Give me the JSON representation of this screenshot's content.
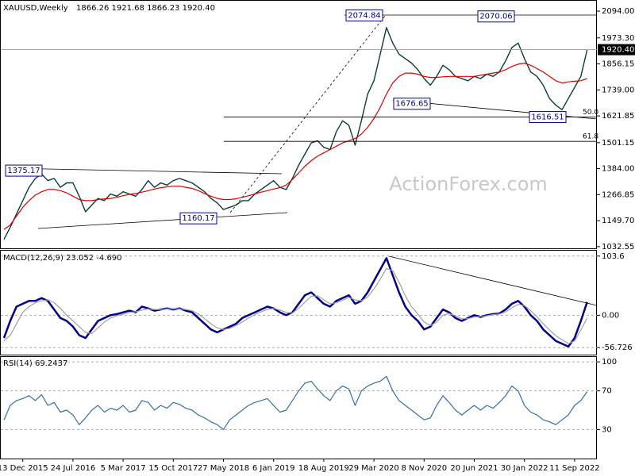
{
  "chart_data": [
    {
      "type": "line",
      "title": "XAUUSD,Weekly",
      "subtitle": "1866.26 1921.68 1866.23 1920.40",
      "categories": [
        null,
        null,
        null,
        "13 Dec 2015",
        null,
        null,
        null,
        null,
        null,
        null,
        null,
        "24 Jul 2016",
        null,
        null,
        null,
        null,
        null,
        null,
        null,
        "5 Mar 2017",
        null,
        null,
        null,
        null,
        null,
        null,
        null,
        "15 Oct 2017",
        null,
        null,
        null,
        null,
        null,
        null,
        null,
        "27 May 2018",
        null,
        null,
        null,
        null,
        null,
        null,
        null,
        "6 Jan 2019",
        null,
        null,
        null,
        null,
        null,
        null,
        null,
        "18 Aug 2019",
        null,
        null,
        null,
        null,
        null,
        null,
        null,
        "29 Mar 2020",
        null,
        null,
        null,
        null,
        null,
        null,
        null,
        "8 Nov 2020",
        null,
        null,
        null,
        null,
        null,
        null,
        null,
        "20 Jun 2021",
        null,
        null,
        null,
        null,
        null,
        null,
        null,
        "30 Jan 2022",
        null,
        null,
        null,
        null,
        null,
        null,
        null,
        "11 Sep 2022",
        null,
        null
      ],
      "series": [
        {
          "color": "#0b3b3b",
          "values": [
            1065,
            1120,
            1180,
            1240,
            1300,
            1340,
            1360,
            1330,
            1340,
            1300,
            1320,
            1320,
            1260,
            1190,
            1220,
            1250,
            1240,
            1270,
            1260,
            1280,
            1270,
            1260,
            1290,
            1330,
            1300,
            1320,
            1310,
            1330,
            1340,
            1330,
            1320,
            1300,
            1280,
            1250,
            1230,
            1200,
            1210,
            1220,
            1240,
            1240,
            1270,
            1290,
            1310,
            1330,
            1300,
            1290,
            1340,
            1400,
            1450,
            1500,
            1510,
            1480,
            1470,
            1550,
            1600,
            1580,
            1490,
            1600,
            1720,
            1780,
            1900,
            2020,
            1950,
            1900,
            1880,
            1860,
            1830,
            1790,
            1760,
            1800,
            1850,
            1830,
            1800,
            1790,
            1780,
            1800,
            1790,
            1810,
            1800,
            1820,
            1870,
            1930,
            1950,
            1880,
            1820,
            1800,
            1760,
            1700,
            1670,
            1650,
            1700,
            1750,
            1800,
            1920.4
          ]
        },
        {
          "color": "#e00000",
          "values": [
            1110,
            1130,
            1170,
            1210,
            1240,
            1265,
            1280,
            1290,
            1290,
            1285,
            1275,
            1260,
            1245,
            1240,
            1240,
            1245,
            1248,
            1250,
            1255,
            1262,
            1268,
            1272,
            1278,
            1285,
            1292,
            1298,
            1302,
            1305,
            1305,
            1300,
            1295,
            1285,
            1272,
            1260,
            1250,
            1245,
            1245,
            1248,
            1255,
            1262,
            1270,
            1278,
            1285,
            1292,
            1298,
            1310,
            1335,
            1365,
            1395,
            1420,
            1440,
            1455,
            1470,
            1485,
            1500,
            1510,
            1520,
            1540,
            1570,
            1610,
            1660,
            1720,
            1770,
            1800,
            1815,
            1815,
            1810,
            1800,
            1795,
            1795,
            1798,
            1800,
            1800,
            1800,
            1800,
            1800,
            1805,
            1810,
            1815,
            1820,
            1830,
            1845,
            1855,
            1860,
            1850,
            1835,
            1820,
            1800,
            1780,
            1770,
            1775,
            1778,
            1780,
            1790
          ]
        }
      ],
      "ylim": [
        1025,
        2137
      ],
      "yticks": [
        {
          "value": 2094,
          "label": "2094.00"
        },
        {
          "value": 1973.3,
          "label": "1973.30"
        },
        {
          "value": 1856.15,
          "label": "1856.15"
        },
        {
          "value": 1739,
          "label": "1739.00"
        },
        {
          "value": 1621.85,
          "label": "1621.85"
        },
        {
          "value": 1501.15,
          "label": "1501.15"
        },
        {
          "value": 1384,
          "label": "1384.00"
        },
        {
          "value": 1266.85,
          "label": "1266.85"
        },
        {
          "value": 1149.7,
          "label": "1149.70"
        },
        {
          "value": 1032.55,
          "label": "1032.55"
        }
      ],
      "last_price": {
        "value": 1920.4,
        "label": "1920.40"
      },
      "annotations": [
        2074.84,
        2070.06,
        1375.17,
        1160.17,
        1676.65,
        1616.51
      ],
      "fib_levels": [
        {
          "value": 1617,
          "label": "50.0"
        },
        {
          "value": 1507,
          "label": "61.8"
        }
      ],
      "watermark": "ActionForex.com"
    },
    {
      "type": "line",
      "title": "MACD(12,26,9) 23.052 -4.690",
      "series": [
        {
          "color": "#00008b",
          "values": [
            -40,
            -10,
            15,
            20,
            25,
            25,
            30,
            25,
            10,
            -5,
            -10,
            -20,
            -35,
            -40,
            -25,
            -10,
            -5,
            0,
            2,
            5,
            8,
            5,
            15,
            12,
            8,
            10,
            12,
            10,
            12,
            8,
            5,
            -5,
            -15,
            -25,
            -30,
            -25,
            -20,
            -15,
            -5,
            0,
            5,
            10,
            15,
            12,
            5,
            0,
            5,
            20,
            35,
            40,
            30,
            20,
            15,
            25,
            30,
            35,
            20,
            25,
            40,
            60,
            80,
            100,
            70,
            40,
            15,
            0,
            -10,
            -25,
            -20,
            -5,
            10,
            5,
            -5,
            -10,
            -5,
            0,
            -3,
            0,
            2,
            3,
            10,
            20,
            25,
            15,
            0,
            -10,
            -25,
            -35,
            -45,
            -50,
            -55,
            -40,
            -10,
            23.052
          ]
        },
        {
          "color": "#a0a0a0",
          "values": [
            -45,
            -35,
            -15,
            5,
            15,
            22,
            25,
            27,
            22,
            12,
            0,
            -10,
            -20,
            -30,
            -32,
            -22,
            -12,
            -5,
            -1,
            2,
            5,
            6,
            9,
            11,
            10,
            10,
            11,
            11,
            11,
            10,
            8,
            2,
            -6,
            -15,
            -22,
            -25,
            -23,
            -18,
            -12,
            -5,
            1,
            6,
            10,
            12,
            9,
            5,
            4,
            12,
            23,
            33,
            34,
            27,
            20,
            22,
            26,
            31,
            27,
            25,
            32,
            46,
            63,
            82,
            78,
            58,
            34,
            15,
            2,
            -12,
            -18,
            -12,
            0,
            3,
            -1,
            -6,
            -6,
            -3,
            -2,
            -1,
            1,
            2,
            6,
            13,
            19,
            17,
            8,
            -3,
            -15,
            -26,
            -36,
            -43,
            -50,
            -45,
            -26,
            -4.69
          ]
        }
      ],
      "ylim": [
        -69,
        113
      ],
      "yticks": [
        103.6,
        {
          "value": 0,
          "label": "0.00"
        },
        -56.726
      ]
    },
    {
      "type": "line",
      "title": "RSI(14) 69.2437",
      "series": [
        {
          "color": "#3a6ea5",
          "values": [
            40,
            55,
            60,
            62,
            65,
            60,
            66,
            55,
            58,
            48,
            50,
            45,
            35,
            42,
            50,
            55,
            48,
            52,
            50,
            55,
            48,
            50,
            60,
            58,
            50,
            55,
            52,
            58,
            56,
            52,
            50,
            45,
            42,
            38,
            35,
            30,
            40,
            45,
            50,
            55,
            58,
            60,
            62,
            55,
            48,
            50,
            60,
            70,
            78,
            80,
            72,
            65,
            60,
            70,
            75,
            72,
            55,
            70,
            75,
            78,
            80,
            85,
            70,
            60,
            55,
            50,
            45,
            40,
            42,
            55,
            65,
            58,
            50,
            45,
            50,
            55,
            50,
            55,
            52,
            58,
            65,
            75,
            70,
            55,
            48,
            45,
            40,
            38,
            35,
            40,
            45,
            55,
            60,
            69.2437
          ]
        }
      ],
      "ylim": [
        0,
        105
      ],
      "yticks": [
        100,
        70,
        30
      ]
    }
  ]
}
